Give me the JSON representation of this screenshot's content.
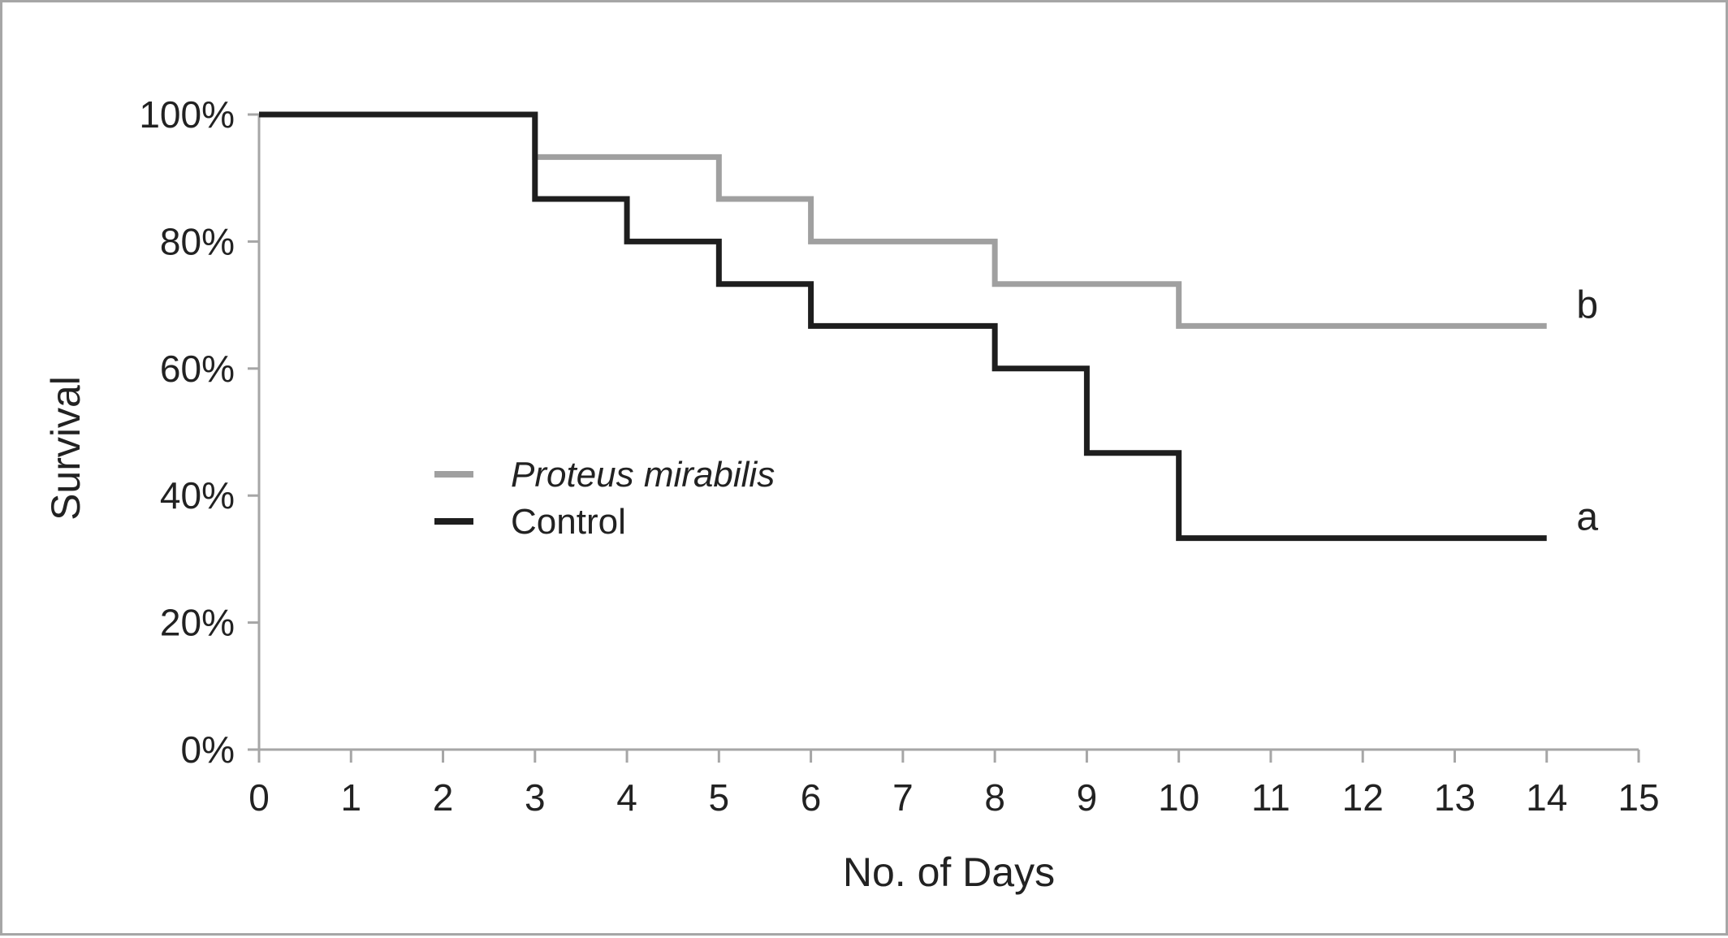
{
  "chart_data": {
    "type": "line",
    "step": true,
    "xlabel": "No. of Days",
    "ylabel": "Survival",
    "xlim": [
      0,
      15
    ],
    "ylim": [
      0,
      100
    ],
    "x_ticks": [
      "0",
      "1",
      "2",
      "3",
      "4",
      "5",
      "6",
      "7",
      "8",
      "9",
      "10",
      "11",
      "12",
      "13",
      "14",
      "15"
    ],
    "y_ticks": [
      "0%",
      "20%",
      "40%",
      "60%",
      "80%",
      "100%"
    ],
    "y_tick_values": [
      0,
      20,
      40,
      60,
      80,
      100
    ],
    "legend_position": "center-left",
    "grid": false,
    "series": [
      {
        "name": "Proteus mirabilis",
        "italic": true,
        "color": "#a0a0a0",
        "annotation": "b",
        "points": [
          {
            "x": 0,
            "y": 100
          },
          {
            "x": 3,
            "y": 93.3
          },
          {
            "x": 5,
            "y": 86.7
          },
          {
            "x": 6,
            "y": 80
          },
          {
            "x": 8,
            "y": 73.3
          },
          {
            "x": 10,
            "y": 66.7
          },
          {
            "x": 14,
            "y": 66.7
          }
        ]
      },
      {
        "name": "Control",
        "italic": false,
        "color": "#1e1e1e",
        "annotation": "a",
        "points": [
          {
            "x": 0,
            "y": 100
          },
          {
            "x": 3,
            "y": 86.7
          },
          {
            "x": 4,
            "y": 80
          },
          {
            "x": 5,
            "y": 73.3
          },
          {
            "x": 6,
            "y": 66.7
          },
          {
            "x": 8,
            "y": 60
          },
          {
            "x": 9,
            "y": 46.7
          },
          {
            "x": 10,
            "y": 33.3
          },
          {
            "x": 14,
            "y": 33.3
          }
        ]
      }
    ]
  }
}
